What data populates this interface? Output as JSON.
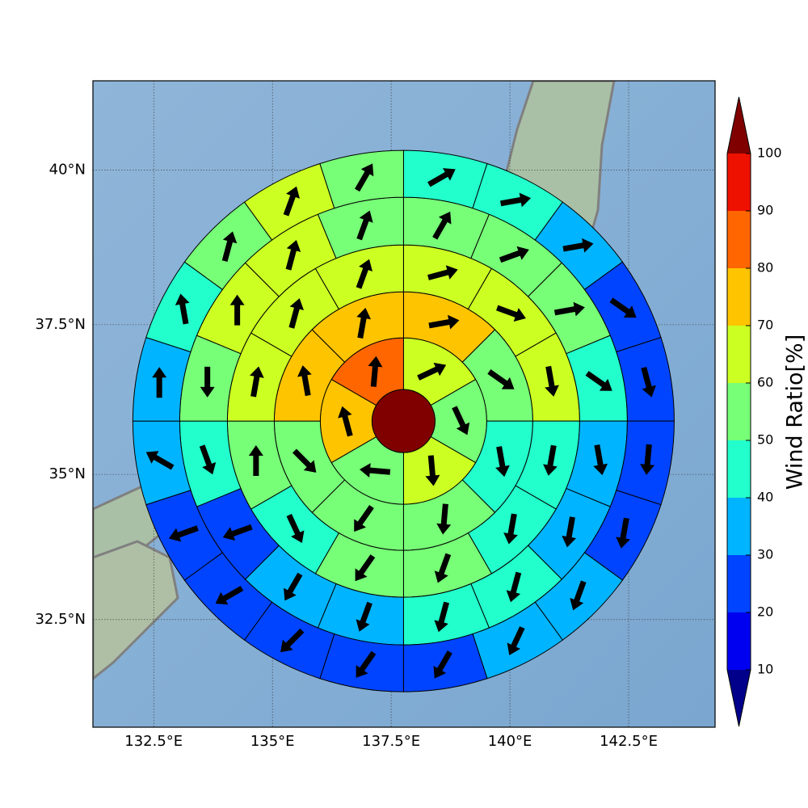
{
  "chart_data": {
    "type": "polar-sector-map",
    "xlim": [
      131.22,
      144.32
    ],
    "ylim": [
      30.6,
      41.4
    ],
    "projection": "mercator",
    "grid": true,
    "xticks": [
      {
        "value": 132.5,
        "label": "132.5°E"
      },
      {
        "value": 135,
        "label": "135°E"
      },
      {
        "value": 137.5,
        "label": "137.5°E"
      },
      {
        "value": 140,
        "label": "140°E"
      },
      {
        "value": 142.5,
        "label": "142.5°E"
      }
    ],
    "yticks": [
      {
        "value": 32.5,
        "label": "32.5°N"
      },
      {
        "value": 35,
        "label": "35°N"
      },
      {
        "value": 37.5,
        "label": "37.5°N"
      },
      {
        "value": 40,
        "label": "40°N"
      }
    ],
    "center": {
      "lon": 137.76,
      "lat": 35.9
    },
    "center_value": 105,
    "rings": [
      {
        "values": [
          65,
          55,
          65,
          55,
          75,
          85
        ],
        "directions": [
          65,
          155,
          175,
          275,
          345,
          5
        ]
      },
      {
        "values": [
          75,
          55,
          45,
          55,
          55,
          55,
          75,
          75
        ],
        "directions": [
          80,
          125,
          170,
          185,
          215,
          135,
          350,
          10
        ]
      },
      {
        "values": [
          65,
          65,
          65,
          45,
          45,
          55,
          55,
          45,
          55,
          65,
          65,
          65
        ],
        "directions": [
          75,
          110,
          170,
          190,
          190,
          200,
          215,
          155,
          0,
          10,
          15,
          20
        ]
      },
      {
        "values": [
          55,
          55,
          55,
          45,
          35,
          35,
          45,
          45,
          35,
          35,
          25,
          45,
          55,
          65,
          65,
          55
        ],
        "directions": [
          30,
          70,
          80,
          125,
          170,
          190,
          195,
          195,
          200,
          210,
          250,
          160,
          180,
          0,
          15,
          20
        ]
      },
      {
        "values": [
          45,
          45,
          35,
          25,
          25,
          25,
          25,
          35,
          35,
          25,
          25,
          25,
          25,
          25,
          35,
          35,
          45,
          55,
          65,
          55
        ],
        "directions": [
          60,
          80,
          80,
          125,
          165,
          185,
          190,
          200,
          205,
          210,
          215,
          225,
          240,
          250,
          300,
          0,
          350,
          15,
          20,
          30
        ]
      }
    ],
    "colorbar": {
      "label": "Wind Ratio[%]",
      "ticks": [
        10,
        20,
        30,
        40,
        50,
        60,
        70,
        80,
        90,
        100
      ],
      "colors": [
        "#0000f0",
        "#0044ff",
        "#00b4ff",
        "#22ffcc",
        "#77ff77",
        "#ccff22",
        "#ffc400",
        "#ff6600",
        "#ee1100"
      ],
      "under_color": "#00008b",
      "over_color": "#800000"
    }
  }
}
